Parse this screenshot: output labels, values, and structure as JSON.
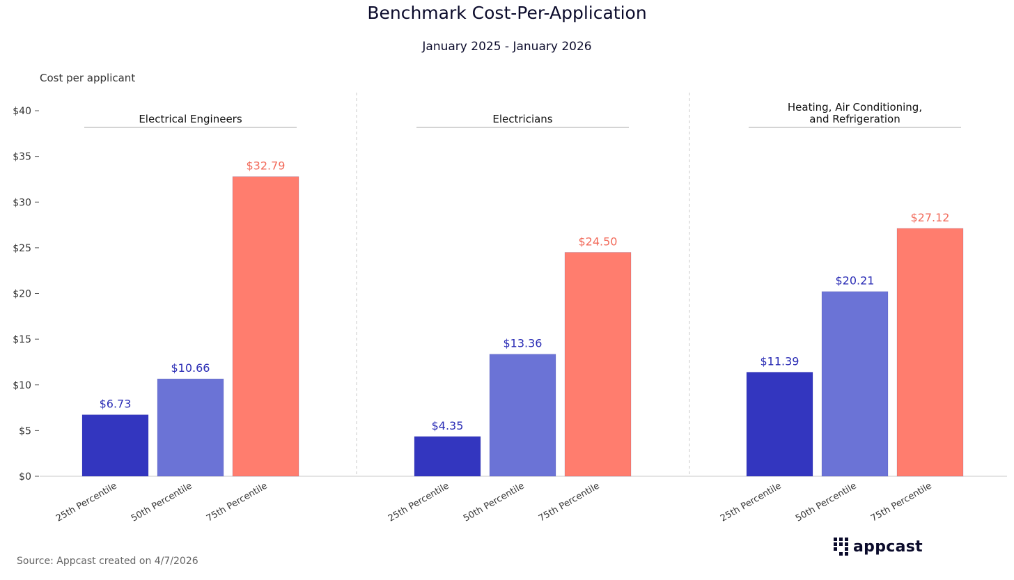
{
  "page": {
    "title": "Benchmark Cost-Per-Application",
    "subtitle": "January 2025 - January 2026",
    "ylabel": "Cost per applicant",
    "source": "Source: Appcast created on 4/7/2026",
    "logo_text": "appcast"
  },
  "chart_data": {
    "type": "bar",
    "title": "Benchmark Cost-Per-Application",
    "subtitle": "January 2025 - January 2026",
    "ylabel": "Cost per applicant",
    "ylim": [
      0,
      40
    ],
    "yticks": [
      0,
      5,
      10,
      15,
      20,
      25,
      30,
      35,
      40
    ],
    "ytick_labels": [
      "$0",
      "$5",
      "$10",
      "$15",
      "$20",
      "$25",
      "$30",
      "$35",
      "$40"
    ],
    "grid": false,
    "categories": [
      "25th Percentile",
      "50th Percentile",
      "75th Percentile"
    ],
    "colors": [
      "#3336bf",
      "#6b73d6",
      "#ff7d6e"
    ],
    "label_colors": [
      "#2b2db5",
      "#2b2db5",
      "#f26a5a"
    ],
    "groups": [
      {
        "name_lines": [
          "Electrical Engineers"
        ],
        "values": [
          6.73,
          10.66,
          32.79
        ],
        "labels": [
          "$6.73",
          "$10.66",
          "$32.79"
        ]
      },
      {
        "name_lines": [
          "Electricians"
        ],
        "values": [
          4.35,
          13.36,
          24.5
        ],
        "labels": [
          "$4.35",
          "$13.36",
          "$24.50"
        ]
      },
      {
        "name_lines": [
          "Heating, Air Conditioning,",
          "and Refrigeration"
        ],
        "values": [
          11.39,
          20.21,
          27.12
        ],
        "labels": [
          "$11.39",
          "$20.21",
          "$27.12"
        ]
      }
    ]
  }
}
